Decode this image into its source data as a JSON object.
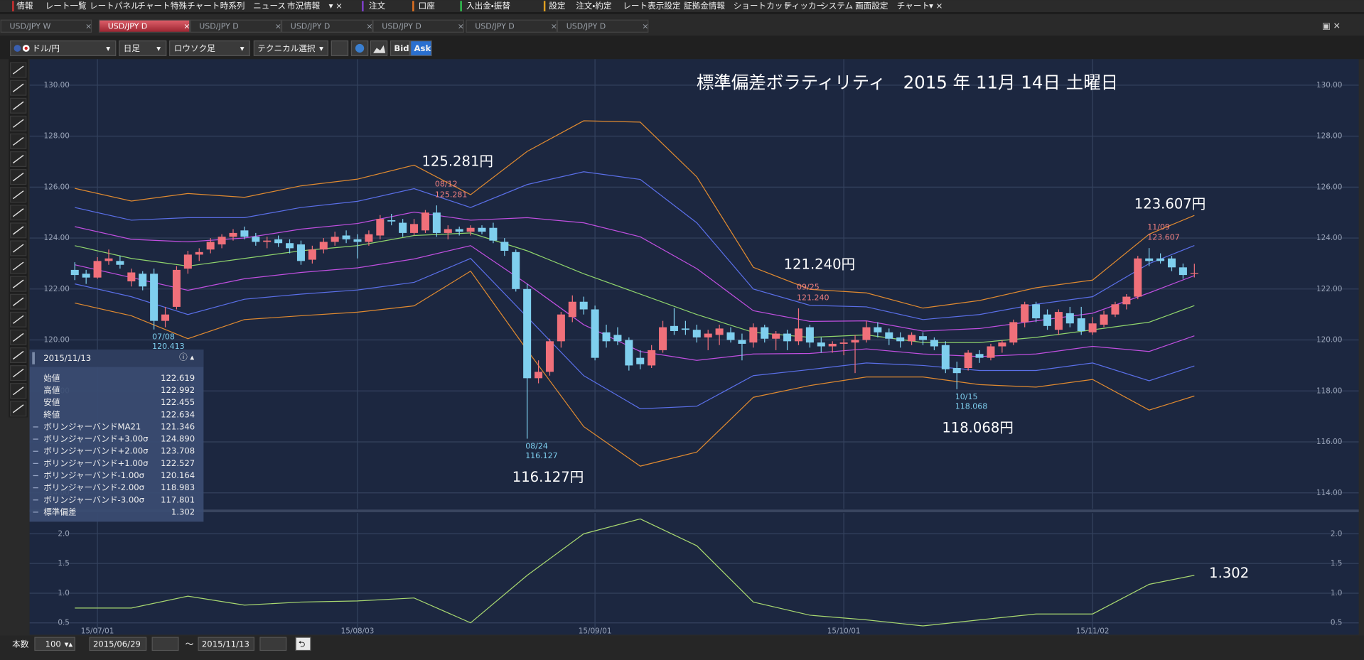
{
  "menu": [
    "情報",
    "レート一覧",
    "レートパネル",
    "チャート",
    "特殊チャート",
    "時系列",
    "ニュース",
    "市況情報",
    "注文",
    "口座",
    "入出金・振替",
    "設定",
    "注文・約定",
    "レート表示設定",
    "証拠金情報",
    "ショートカット",
    "ティッカー",
    "システム",
    "画面設定",
    "チャート"
  ],
  "tabs": [
    "USD/JPY W",
    "USD/JPY D",
    "USD/JPY D",
    "USD/JPY D",
    "USD/JPY D",
    "USD/JPY D",
    "USD/JPY D"
  ],
  "toolbar": {
    "pair": "ドル/円",
    "period": "日足",
    "style": "ロウソク足",
    "technical": "テクニカル選択",
    "bid": "Bid",
    "ask": "Ask"
  },
  "footer": {
    "count_label": "本数",
    "count": "100",
    "from": "2015/06/29",
    "tilde": "～",
    "to": "2015/11/13"
  },
  "data_window": {
    "date": "2015/11/13",
    "rows": [
      {
        "label": "始値",
        "value": "122.619"
      },
      {
        "label": "高値",
        "value": "122.992"
      },
      {
        "label": "安値",
        "value": "122.455"
      },
      {
        "label": "終値",
        "value": "122.634"
      },
      {
        "label": "ボリンジャーバンドMA21",
        "value": "121.346"
      },
      {
        "label": "ボリンジャーバンド+3.00σ",
        "value": "124.890"
      },
      {
        "label": "ボリンジャーバンド+2.00σ",
        "value": "123.708"
      },
      {
        "label": "ボリンジャーバンド+1.00σ",
        "value": "122.527"
      },
      {
        "label": "ボリンジャーバンド-1.00σ",
        "value": "120.164"
      },
      {
        "label": "ボリンジャーバンド-2.00σ",
        "value": "118.983"
      },
      {
        "label": "ボリンジャーバンド-3.00σ",
        "value": "117.801"
      },
      {
        "label": "標準偏差",
        "value": "1.302"
      }
    ]
  },
  "chart_data": [
    {
      "type": "candlestick",
      "title": "標準偏差ボラティリティ　2015 年 11月 14日 土曜日",
      "up_color": "#f0707a",
      "down_color": "#7fcfee",
      "grid": true,
      "xlim": [
        -4,
        113.54
      ],
      "xticks": [
        {
          "value": 2,
          "label": "15/07/01"
        },
        {
          "value": 25,
          "label": "15/08/03"
        },
        {
          "value": 46,
          "label": "15/09/01"
        },
        {
          "value": 68,
          "label": "15/10/01"
        },
        {
          "value": 90,
          "label": "15/11/02"
        }
      ],
      "ylim": [
        113.38,
        131.02
      ],
      "yticks": [
        {
          "value": 130,
          "label": "130.00"
        },
        {
          "value": 128,
          "label": "128.00"
        },
        {
          "value": 126,
          "label": "126.00"
        },
        {
          "value": 124,
          "label": "124.00"
        },
        {
          "value": 122,
          "label": "122.00"
        },
        {
          "value": 120,
          "label": "120.00"
        },
        {
          "value": 118,
          "label": "118.00"
        },
        {
          "value": 116,
          "label": "116.00"
        },
        {
          "value": 114,
          "label": "114.00"
        }
      ],
      "candles": [
        [
          122.75,
          123.05,
          122.35,
          122.55
        ],
        [
          122.6,
          122.75,
          122.2,
          122.45
        ],
        [
          122.45,
          123.25,
          122.4,
          123.1
        ],
        [
          123.1,
          123.55,
          122.95,
          123.2
        ],
        [
          123.1,
          123.3,
          122.8,
          122.95
        ],
        [
          122.3,
          122.8,
          122.1,
          122.65
        ],
        [
          122.6,
          122.7,
          121.95,
          122.1
        ],
        [
          122.6,
          122.8,
          120.413,
          120.75
        ],
        [
          120.75,
          121.3,
          120.5,
          121.0
        ],
        [
          121.3,
          122.9,
          121.2,
          122.75
        ],
        [
          122.8,
          123.5,
          122.6,
          123.35
        ],
        [
          123.35,
          123.6,
          123.1,
          123.45
        ],
        [
          123.55,
          124.0,
          123.4,
          123.85
        ],
        [
          123.75,
          124.15,
          123.6,
          124.05
        ],
        [
          124.05,
          124.35,
          123.9,
          124.2
        ],
        [
          124.3,
          124.45,
          123.95,
          124.05
        ],
        [
          124.05,
          124.2,
          123.7,
          123.85
        ],
        [
          123.85,
          124.05,
          123.6,
          123.9
        ],
        [
          123.95,
          124.1,
          123.65,
          123.8
        ],
        [
          123.8,
          123.95,
          123.4,
          123.6
        ],
        [
          123.75,
          123.9,
          122.95,
          123.1
        ],
        [
          123.15,
          123.7,
          123.0,
          123.55
        ],
        [
          123.55,
          124.0,
          123.4,
          123.85
        ],
        [
          123.85,
          124.25,
          123.7,
          124.05
        ],
        [
          124.1,
          124.3,
          123.8,
          123.95
        ],
        [
          123.95,
          124.15,
          123.2,
          123.85
        ],
        [
          123.85,
          124.3,
          123.7,
          124.15
        ],
        [
          124.1,
          124.9,
          123.95,
          124.75
        ],
        [
          124.7,
          124.95,
          124.5,
          124.65
        ],
        [
          124.6,
          124.75,
          124.05,
          124.2
        ],
        [
          124.2,
          124.75,
          124.1,
          124.55
        ],
        [
          124.3,
          125.1,
          124.2,
          125.0
        ],
        [
          125.0,
          125.281,
          124.05,
          124.2
        ],
        [
          124.2,
          124.5,
          123.95,
          124.35
        ],
        [
          124.35,
          124.45,
          124.1,
          124.25
        ],
        [
          124.25,
          124.5,
          124.1,
          124.4
        ],
        [
          124.4,
          124.5,
          124.15,
          124.25
        ],
        [
          124.4,
          124.6,
          123.8,
          123.9
        ],
        [
          123.85,
          124.0,
          123.3,
          123.5
        ],
        [
          123.45,
          123.55,
          121.9,
          122.0
        ],
        [
          122.0,
          122.2,
          116.127,
          118.5
        ],
        [
          118.5,
          119.2,
          118.3,
          118.75
        ],
        [
          118.75,
          120.05,
          118.6,
          119.95
        ],
        [
          119.95,
          121.1,
          119.7,
          121.0
        ],
        [
          120.9,
          121.75,
          120.7,
          121.5
        ],
        [
          121.5,
          121.7,
          121.0,
          121.2
        ],
        [
          121.2,
          121.35,
          119.2,
          119.3
        ],
        [
          120.3,
          120.6,
          119.7,
          119.95
        ],
        [
          120.2,
          120.5,
          119.8,
          119.95
        ],
        [
          120.0,
          120.1,
          118.8,
          119.0
        ],
        [
          119.3,
          119.6,
          118.85,
          119.05
        ],
        [
          119.0,
          119.8,
          118.9,
          119.6
        ],
        [
          119.6,
          120.75,
          119.5,
          120.5
        ],
        [
          120.55,
          121.25,
          120.2,
          120.35
        ],
        [
          120.45,
          120.75,
          120.2,
          120.4
        ],
        [
          120.4,
          120.6,
          119.9,
          120.1
        ],
        [
          120.1,
          120.4,
          119.6,
          120.25
        ],
        [
          120.2,
          120.6,
          119.8,
          120.45
        ],
        [
          120.3,
          120.5,
          119.9,
          120.0
        ],
        [
          120.0,
          120.25,
          119.2,
          119.85
        ],
        [
          119.9,
          120.65,
          119.7,
          120.5
        ],
        [
          120.5,
          120.6,
          119.9,
          120.05
        ],
        [
          120.05,
          120.35,
          119.6,
          120.25
        ],
        [
          120.25,
          120.4,
          119.6,
          119.95
        ],
        [
          119.95,
          121.24,
          119.8,
          120.45
        ],
        [
          120.5,
          120.6,
          119.7,
          119.9
        ],
        [
          119.9,
          120.1,
          119.5,
          119.75
        ],
        [
          119.75,
          119.95,
          119.5,
          119.85
        ],
        [
          119.85,
          120.05,
          119.4,
          119.9
        ],
        [
          119.9,
          120.2,
          118.7,
          120.0
        ],
        [
          120.0,
          120.75,
          119.9,
          120.5
        ],
        [
          120.5,
          120.7,
          120.1,
          120.3
        ],
        [
          120.3,
          120.45,
          119.8,
          120.05
        ],
        [
          120.1,
          120.3,
          119.7,
          119.95
        ],
        [
          119.95,
          120.3,
          119.8,
          120.2
        ],
        [
          120.15,
          120.3,
          119.8,
          120.0
        ],
        [
          120.0,
          120.1,
          119.6,
          119.75
        ],
        [
          119.8,
          119.95,
          118.7,
          118.85
        ],
        [
          118.9,
          119.15,
          118.068,
          118.7
        ],
        [
          118.9,
          119.6,
          118.8,
          119.5
        ],
        [
          119.45,
          119.6,
          119.1,
          119.3
        ],
        [
          119.3,
          119.85,
          119.2,
          119.75
        ],
        [
          119.75,
          120.0,
          119.5,
          119.9
        ],
        [
          119.9,
          120.8,
          119.8,
          120.7
        ],
        [
          120.7,
          121.5,
          120.5,
          121.4
        ],
        [
          121.4,
          121.5,
          120.7,
          120.85
        ],
        [
          121.0,
          121.2,
          120.4,
          120.55
        ],
        [
          120.4,
          121.2,
          120.2,
          121.1
        ],
        [
          121.05,
          121.3,
          120.5,
          120.65
        ],
        [
          120.85,
          121.3,
          120.2,
          120.35
        ],
        [
          120.3,
          120.9,
          120.2,
          120.65
        ],
        [
          120.6,
          121.15,
          120.5,
          121.0
        ],
        [
          121.0,
          121.5,
          120.9,
          121.4
        ],
        [
          121.4,
          121.8,
          121.2,
          121.7
        ],
        [
          121.7,
          123.3,
          121.6,
          123.2
        ],
        [
          123.2,
          123.607,
          122.9,
          123.1
        ],
        [
          123.2,
          123.4,
          123.0,
          123.1
        ],
        [
          123.2,
          123.3,
          122.7,
          122.85
        ],
        [
          122.85,
          123.0,
          122.4,
          122.55
        ],
        [
          122.619,
          122.992,
          122.455,
          122.634
        ]
      ],
      "x": [
        0,
        5,
        10,
        15,
        20,
        25,
        30,
        35,
        40,
        45,
        50,
        55,
        60,
        65,
        70,
        75,
        80,
        85,
        90,
        95,
        99
      ],
      "series": [
        {
          "color": "#e08a30",
          "values": [
            125.95,
            125.45,
            125.75,
            125.6,
            126.05,
            126.31,
            126.86,
            125.7,
            127.4,
            128.6,
            128.55,
            126.4,
            122.85,
            121.99,
            121.85,
            121.25,
            121.55,
            122.05,
            122.35,
            124.15,
            124.89
          ]
        },
        {
          "color": "#5a6fe8",
          "values": [
            125.2,
            124.7,
            124.8,
            124.8,
            125.2,
            125.44,
            125.94,
            125.2,
            126.1,
            126.6,
            126.3,
            124.6,
            122.0,
            121.36,
            121.3,
            120.8,
            121.0,
            121.4,
            121.7,
            123.0,
            123.708
          ]
        },
        {
          "color": "#c04fe0",
          "values": [
            124.45,
            123.95,
            123.85,
            124.0,
            124.35,
            124.57,
            125.02,
            124.7,
            124.8,
            124.6,
            124.05,
            122.8,
            121.15,
            120.73,
            120.75,
            120.35,
            120.45,
            120.75,
            121.05,
            121.85,
            122.527
          ]
        },
        {
          "color": "#8fd46c",
          "values": [
            123.7,
            123.2,
            122.9,
            123.2,
            123.5,
            123.7,
            124.1,
            124.2,
            123.5,
            122.6,
            121.8,
            121.0,
            120.3,
            120.1,
            120.2,
            119.9,
            119.9,
            120.1,
            120.4,
            120.7,
            121.346
          ]
        },
        {
          "color": "#c04fe0",
          "values": [
            122.95,
            122.45,
            121.95,
            122.4,
            122.65,
            122.83,
            123.18,
            123.7,
            122.2,
            120.6,
            119.55,
            119.2,
            119.45,
            119.47,
            119.65,
            119.45,
            119.35,
            119.45,
            119.75,
            119.55,
            120.164
          ]
        },
        {
          "color": "#5a6fe8",
          "values": [
            122.2,
            121.7,
            121.0,
            121.6,
            121.8,
            121.96,
            122.26,
            123.2,
            120.9,
            118.6,
            117.3,
            117.4,
            118.6,
            118.84,
            119.1,
            119.0,
            118.8,
            118.8,
            119.1,
            118.4,
            118.983
          ]
        },
        {
          "color": "#e08a30",
          "values": [
            121.45,
            120.95,
            120.05,
            120.8,
            120.95,
            121.09,
            121.34,
            122.7,
            119.6,
            116.6,
            115.05,
            115.6,
            117.75,
            118.21,
            118.55,
            118.55,
            118.25,
            118.15,
            118.45,
            117.25,
            117.801
          ]
        }
      ],
      "annotations": [
        {
          "date": "07/08",
          "value": 120.413
        },
        {
          "date": "08/12",
          "value": 125.281,
          "label": "125.281円"
        },
        {
          "date": "08/24",
          "value": 116.127,
          "label": "116.127円"
        },
        {
          "date": "09/25",
          "value": 121.24,
          "value_label": "121.240",
          "label": "121.240円"
        },
        {
          "date": "10/15",
          "value": 118.068,
          "label": "118.068円"
        },
        {
          "date": "11/09",
          "value": 123.607,
          "label": "123.607円"
        }
      ]
    },
    {
      "type": "line",
      "grid": true,
      "xlim": [
        -4,
        113.54
      ],
      "ylim": [
        0.3,
        2.35
      ],
      "yticks": [
        {
          "value": 2,
          "label": "2.0"
        },
        1.5,
        {
          "value": 1,
          "label": "1.0"
        },
        0.5
      ],
      "x": [
        0,
        5,
        10,
        15,
        20,
        25,
        30,
        35,
        40,
        45,
        50,
        55,
        60,
        65,
        70,
        75,
        80,
        85,
        90,
        95,
        99
      ],
      "series": [
        {
          "color": "#a8d870",
          "values": [
            0.75,
            0.75,
            0.95,
            0.8,
            0.85,
            0.87,
            0.92,
            0.5,
            1.3,
            2.0,
            2.25,
            1.8,
            0.85,
            0.63,
            0.55,
            0.45,
            0.55,
            0.65,
            0.65,
            1.15,
            1.302
          ]
        }
      ]
    }
  ]
}
